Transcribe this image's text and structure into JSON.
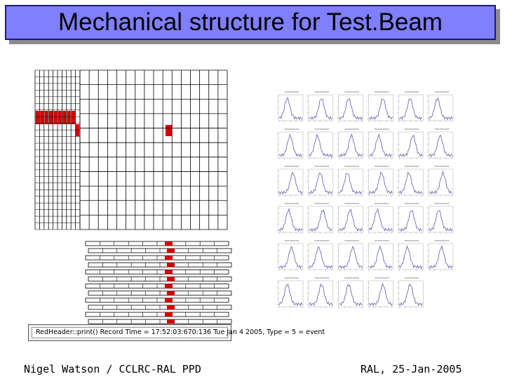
{
  "slide": {
    "title": "Mechanical structure for Test.Beam",
    "footer_left": "Nigel Watson / CCLRC-RAL PPD",
    "footer_right": "RAL, 25-Jan-2005"
  },
  "colors": {
    "title_bg": "#7f7fff",
    "hit_red": "#d40000",
    "grid_line": "#000000",
    "trace": "#6c6cb4"
  },
  "event_display": {
    "status_text": "RedHeader::print() Record Time = 17:52:03:670:136 Tue Jan 4 2005, Type = 5 = event"
  }
}
